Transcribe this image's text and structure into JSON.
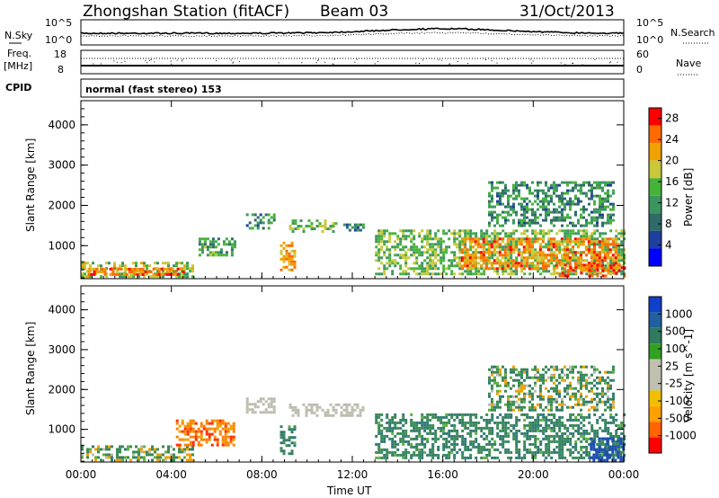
{
  "header": {
    "station": "Zhongshan Station (fitACF)",
    "beam": "Beam 03",
    "date": "31/Oct/2013"
  },
  "top_panels": {
    "nsky_label": "N.Sky",
    "nsky_tick_hi": "10^5",
    "nsky_tick_lo": "10^0",
    "nsearch_label": "N.Search",
    "nsearch_tick_hi": "10^5",
    "nsearch_tick_lo": "10^0",
    "freq_label": "Freq.",
    "freq_unit": "[MHz]",
    "freq_tick_hi": "18",
    "freq_tick_lo": "8",
    "nave_label": "Nave",
    "nave_tick_hi": "60",
    "nave_tick_lo": "0",
    "cpid_label": "CPID",
    "cpid_value": "normal (fast stereo) 153"
  },
  "colors": {
    "power_scale": [
      "#0000ff",
      "#1f3fa0",
      "#2f6a6a",
      "#3c9560",
      "#46b23a",
      "#c8c83a",
      "#f0a000",
      "#ff6a00",
      "#ff0000"
    ],
    "velocity_scale": [
      "#ff0000",
      "#ff6400",
      "#ffa000",
      "#f0c000",
      "#c0c0b0",
      "#c0c0b0",
      "#32a020",
      "#307a60",
      "#2060a0",
      "#1040c8"
    ],
    "velocity_ground": "#bdbdb0"
  },
  "chart_data": [
    {
      "type": "heatmap",
      "name": "power",
      "xlabel": "",
      "ylabel": "Slant Range [km]",
      "x_ticks": [
        "00:00",
        "04:00",
        "08:00",
        "12:00",
        "16:00",
        "20:00",
        "00:00"
      ],
      "x_range_hours": [
        0,
        24
      ],
      "y_ticks": [
        1000,
        2000,
        3000,
        4000
      ],
      "ylim": [
        180,
        4600
      ],
      "colorbar_label": "Power [dB]",
      "colorbar_ticks": [
        4,
        8,
        12,
        16,
        20,
        24,
        28
      ],
      "colorbar_range": [
        0,
        30
      ],
      "regions": [
        {
          "t0": 0.0,
          "t1": 5.0,
          "r0": 250,
          "r1": 600,
          "level": 0.55
        },
        {
          "t0": 0.3,
          "t1": 4.5,
          "r0": 300,
          "r1": 450,
          "level": 0.85
        },
        {
          "t0": 7.3,
          "t1": 8.6,
          "r0": 1450,
          "r1": 1800,
          "level": 0.35
        },
        {
          "t0": 9.2,
          "t1": 11.3,
          "r0": 1350,
          "r1": 1650,
          "level": 0.5
        },
        {
          "t0": 11.6,
          "t1": 12.5,
          "r0": 1350,
          "r1": 1550,
          "level": 0.3
        },
        {
          "t0": 8.8,
          "t1": 9.4,
          "r0": 400,
          "r1": 1100,
          "level": 0.75
        },
        {
          "t0": 5.2,
          "t1": 6.8,
          "r0": 750,
          "r1": 1200,
          "level": 0.4
        },
        {
          "t0": 13.0,
          "t1": 24.0,
          "r0": 300,
          "r1": 1400,
          "level": 0.5
        },
        {
          "t0": 16.8,
          "t1": 23.8,
          "r0": 450,
          "r1": 1200,
          "level": 0.8
        },
        {
          "t0": 18.0,
          "t1": 23.5,
          "r0": 1500,
          "r1": 2600,
          "level": 0.35
        },
        {
          "t0": 21.0,
          "t1": 24.0,
          "r0": 250,
          "r1": 550,
          "level": 0.9
        }
      ]
    },
    {
      "type": "heatmap",
      "name": "velocity",
      "xlabel": "Time UT",
      "ylabel": "Slant Range [km]",
      "x_ticks": [
        "00:00",
        "04:00",
        "08:00",
        "12:00",
        "16:00",
        "20:00",
        "00:00"
      ],
      "x_range_hours": [
        0,
        24
      ],
      "y_ticks": [
        1000,
        2000,
        3000,
        4000
      ],
      "ylim": [
        180,
        4600
      ],
      "colorbar_label": "Velocity [m s^-1]",
      "colorbar_ticks": [
        1000,
        500,
        100,
        25,
        -25,
        -100,
        -500,
        -1000
      ],
      "regions": [
        {
          "t0": 0.0,
          "t1": 5.0,
          "r0": 250,
          "r1": 600,
          "vel": 100
        },
        {
          "t0": 4.2,
          "t1": 6.8,
          "r0": 600,
          "r1": 1250,
          "vel": -300
        },
        {
          "t0": 7.3,
          "t1": 8.6,
          "r0": 1450,
          "r1": 1800,
          "vel": 0
        },
        {
          "t0": 9.2,
          "t1": 12.5,
          "r0": 1350,
          "r1": 1650,
          "vel": 0
        },
        {
          "t0": 8.8,
          "t1": 9.4,
          "r0": 400,
          "r1": 1100,
          "vel": 300
        },
        {
          "t0": 13.0,
          "t1": 24.0,
          "r0": 300,
          "r1": 1400,
          "vel": 300
        },
        {
          "t0": 18.0,
          "t1": 23.5,
          "r0": 1500,
          "r1": 2600,
          "vel": 150
        },
        {
          "t0": 22.5,
          "t1": 24.0,
          "r0": 250,
          "r1": 800,
          "vel": 900
        }
      ]
    }
  ]
}
